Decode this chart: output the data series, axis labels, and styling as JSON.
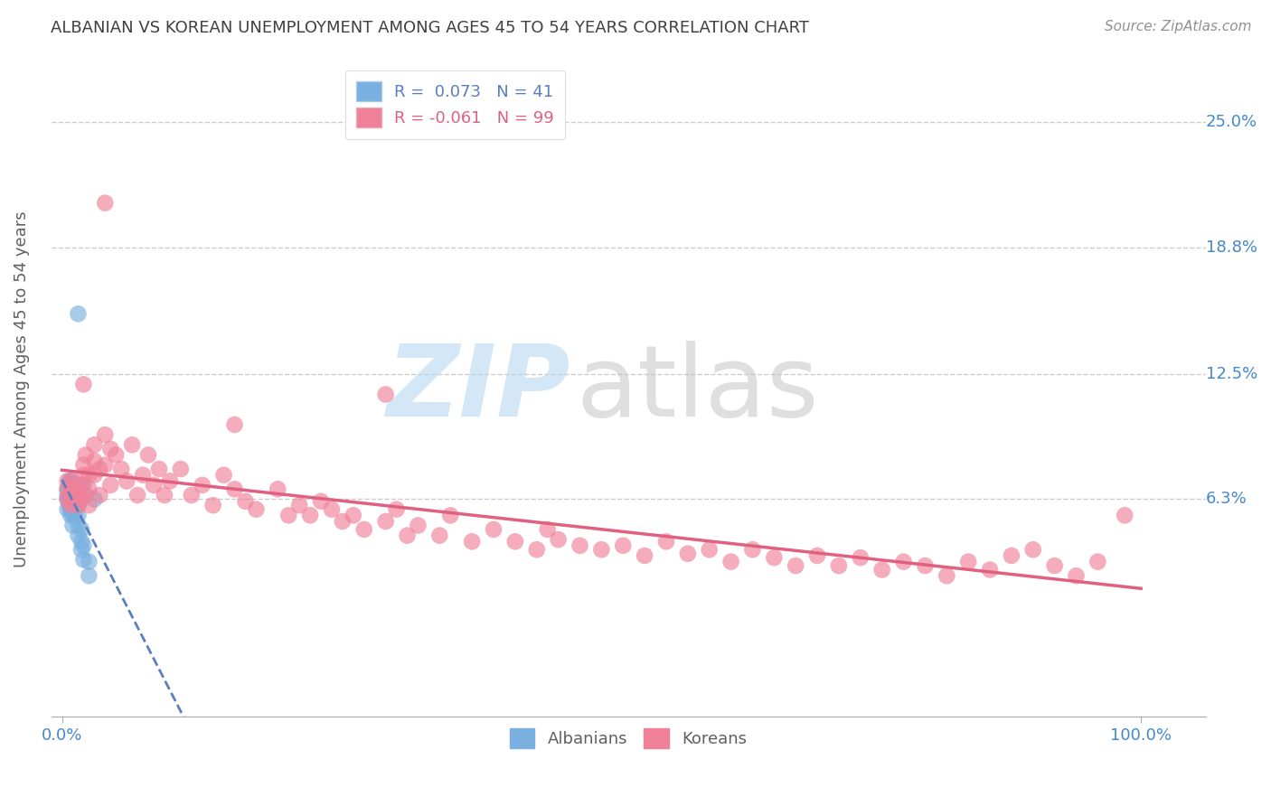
{
  "title": "ALBANIAN VS KOREAN UNEMPLOYMENT AMONG AGES 45 TO 54 YEARS CORRELATION CHART",
  "source": "Source: ZipAtlas.com",
  "ylabel": "Unemployment Among Ages 45 to 54 years",
  "ytick_labels": [
    "6.3%",
    "12.5%",
    "18.8%",
    "25.0%"
  ],
  "ytick_values": [
    0.063,
    0.125,
    0.188,
    0.25
  ],
  "ymax": 0.28,
  "ymin": -0.045,
  "xmin": -0.01,
  "xmax": 1.06,
  "albanian_color": "#7ab0e0",
  "korean_color": "#f08098",
  "albanian_line_color": "#5a7fc0",
  "korean_line_color": "#e06080",
  "background_color": "#ffffff",
  "grid_color": "#cccccc",
  "title_color": "#404040",
  "axis_label_color": "#606060",
  "tick_label_color": "#4488cc",
  "albanian_x": [
    0.005,
    0.005,
    0.005,
    0.005,
    0.007,
    0.007,
    0.007,
    0.007,
    0.007,
    0.008,
    0.008,
    0.008,
    0.008,
    0.008,
    0.008,
    0.008,
    0.01,
    0.01,
    0.01,
    0.01,
    0.01,
    0.01,
    0.01,
    0.012,
    0.012,
    0.012,
    0.012,
    0.015,
    0.015,
    0.015,
    0.015,
    0.015,
    0.018,
    0.018,
    0.018,
    0.02,
    0.02,
    0.02,
    0.025,
    0.025,
    0.03
  ],
  "albanian_y": [
    0.058,
    0.063,
    0.065,
    0.068,
    0.06,
    0.063,
    0.065,
    0.07,
    0.072,
    0.055,
    0.058,
    0.06,
    0.063,
    0.065,
    0.068,
    0.072,
    0.05,
    0.055,
    0.06,
    0.063,
    0.065,
    0.068,
    0.07,
    0.055,
    0.06,
    0.063,
    0.068,
    0.045,
    0.05,
    0.055,
    0.06,
    0.155,
    0.038,
    0.042,
    0.048,
    0.033,
    0.04,
    0.07,
    0.025,
    0.032,
    0.063
  ],
  "korean_x": [
    0.005,
    0.005,
    0.005,
    0.008,
    0.008,
    0.01,
    0.01,
    0.01,
    0.015,
    0.015,
    0.015,
    0.018,
    0.018,
    0.02,
    0.02,
    0.022,
    0.022,
    0.025,
    0.025,
    0.025,
    0.03,
    0.03,
    0.03,
    0.035,
    0.035,
    0.04,
    0.04,
    0.045,
    0.045,
    0.05,
    0.055,
    0.06,
    0.065,
    0.07,
    0.075,
    0.08,
    0.085,
    0.09,
    0.095,
    0.1,
    0.11,
    0.12,
    0.13,
    0.14,
    0.15,
    0.16,
    0.17,
    0.18,
    0.2,
    0.21,
    0.22,
    0.23,
    0.24,
    0.25,
    0.26,
    0.27,
    0.28,
    0.3,
    0.31,
    0.32,
    0.33,
    0.35,
    0.36,
    0.38,
    0.4,
    0.42,
    0.44,
    0.45,
    0.46,
    0.48,
    0.5,
    0.52,
    0.54,
    0.56,
    0.58,
    0.6,
    0.62,
    0.64,
    0.66,
    0.68,
    0.7,
    0.72,
    0.74,
    0.76,
    0.78,
    0.8,
    0.82,
    0.84,
    0.86,
    0.88,
    0.9,
    0.92,
    0.94,
    0.96,
    0.985,
    0.3,
    0.16,
    0.04,
    0.02
  ],
  "korean_y": [
    0.063,
    0.068,
    0.072,
    0.06,
    0.065,
    0.063,
    0.068,
    0.072,
    0.06,
    0.065,
    0.068,
    0.063,
    0.07,
    0.075,
    0.08,
    0.065,
    0.085,
    0.06,
    0.068,
    0.075,
    0.09,
    0.075,
    0.082,
    0.065,
    0.078,
    0.095,
    0.08,
    0.088,
    0.07,
    0.085,
    0.078,
    0.072,
    0.09,
    0.065,
    0.075,
    0.085,
    0.07,
    0.078,
    0.065,
    0.072,
    0.078,
    0.065,
    0.07,
    0.06,
    0.075,
    0.068,
    0.062,
    0.058,
    0.068,
    0.055,
    0.06,
    0.055,
    0.062,
    0.058,
    0.052,
    0.055,
    0.048,
    0.052,
    0.058,
    0.045,
    0.05,
    0.045,
    0.055,
    0.042,
    0.048,
    0.042,
    0.038,
    0.048,
    0.043,
    0.04,
    0.038,
    0.04,
    0.035,
    0.042,
    0.036,
    0.038,
    0.032,
    0.038,
    0.034,
    0.03,
    0.035,
    0.03,
    0.034,
    0.028,
    0.032,
    0.03,
    0.025,
    0.032,
    0.028,
    0.035,
    0.038,
    0.03,
    0.025,
    0.032,
    0.055,
    0.115,
    0.1,
    0.21,
    0.12
  ]
}
